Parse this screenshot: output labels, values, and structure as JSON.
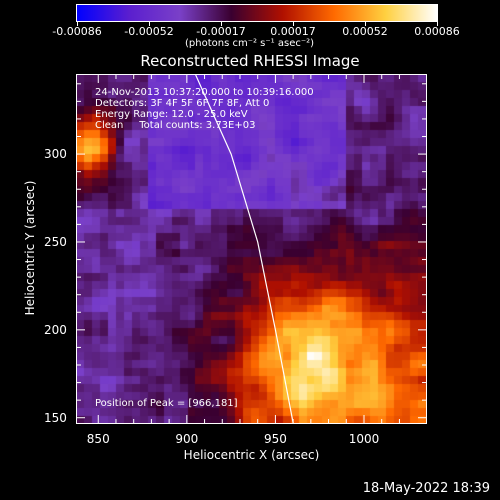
{
  "colorbar": {
    "tick_labels": [
      "-0.00086",
      "-0.00052",
      "-0.00017",
      "0.00017",
      "0.00052",
      "0.00086"
    ],
    "units": "(photons cm⁻² s⁻¹ asec⁻²)",
    "colors": [
      "#0000ff",
      "#5a1ecf",
      "#7a40c8",
      "#3a0030",
      "#b01000",
      "#ff6a00",
      "#ffd040",
      "#ffffff"
    ]
  },
  "chart_data": {
    "type": "heatmap",
    "title": "Reconstructed RHESSI Image",
    "xlabel": "Heliocentric X (arcsec)",
    "ylabel": "Heliocentric Y (arcsec)",
    "xlim": [
      838,
      1035
    ],
    "ylim": [
      147,
      345
    ],
    "xticks": [
      850,
      900,
      950,
      1000
    ],
    "yticks": [
      150,
      200,
      250,
      300
    ],
    "peak": [
      966,
      181
    ],
    "limb": [
      [
        905,
        345
      ],
      [
        925,
        300
      ],
      [
        940,
        250
      ],
      [
        950,
        200
      ],
      [
        960,
        147
      ]
    ]
  },
  "annotations": {
    "line1": "24-Nov-2013 10:37:20.000 to 10:39:16.000",
    "line2": "Detectors: 3F 4F 5F 6F 7F 8F, Att 0",
    "line3": "Energy Range: 12.0 - 25.0 keV",
    "line4": "Clean     Total counts: 3.73E+03",
    "peak_text": "Position of Peak = [966,181]"
  },
  "timestamp": "18-May-2022 18:39"
}
